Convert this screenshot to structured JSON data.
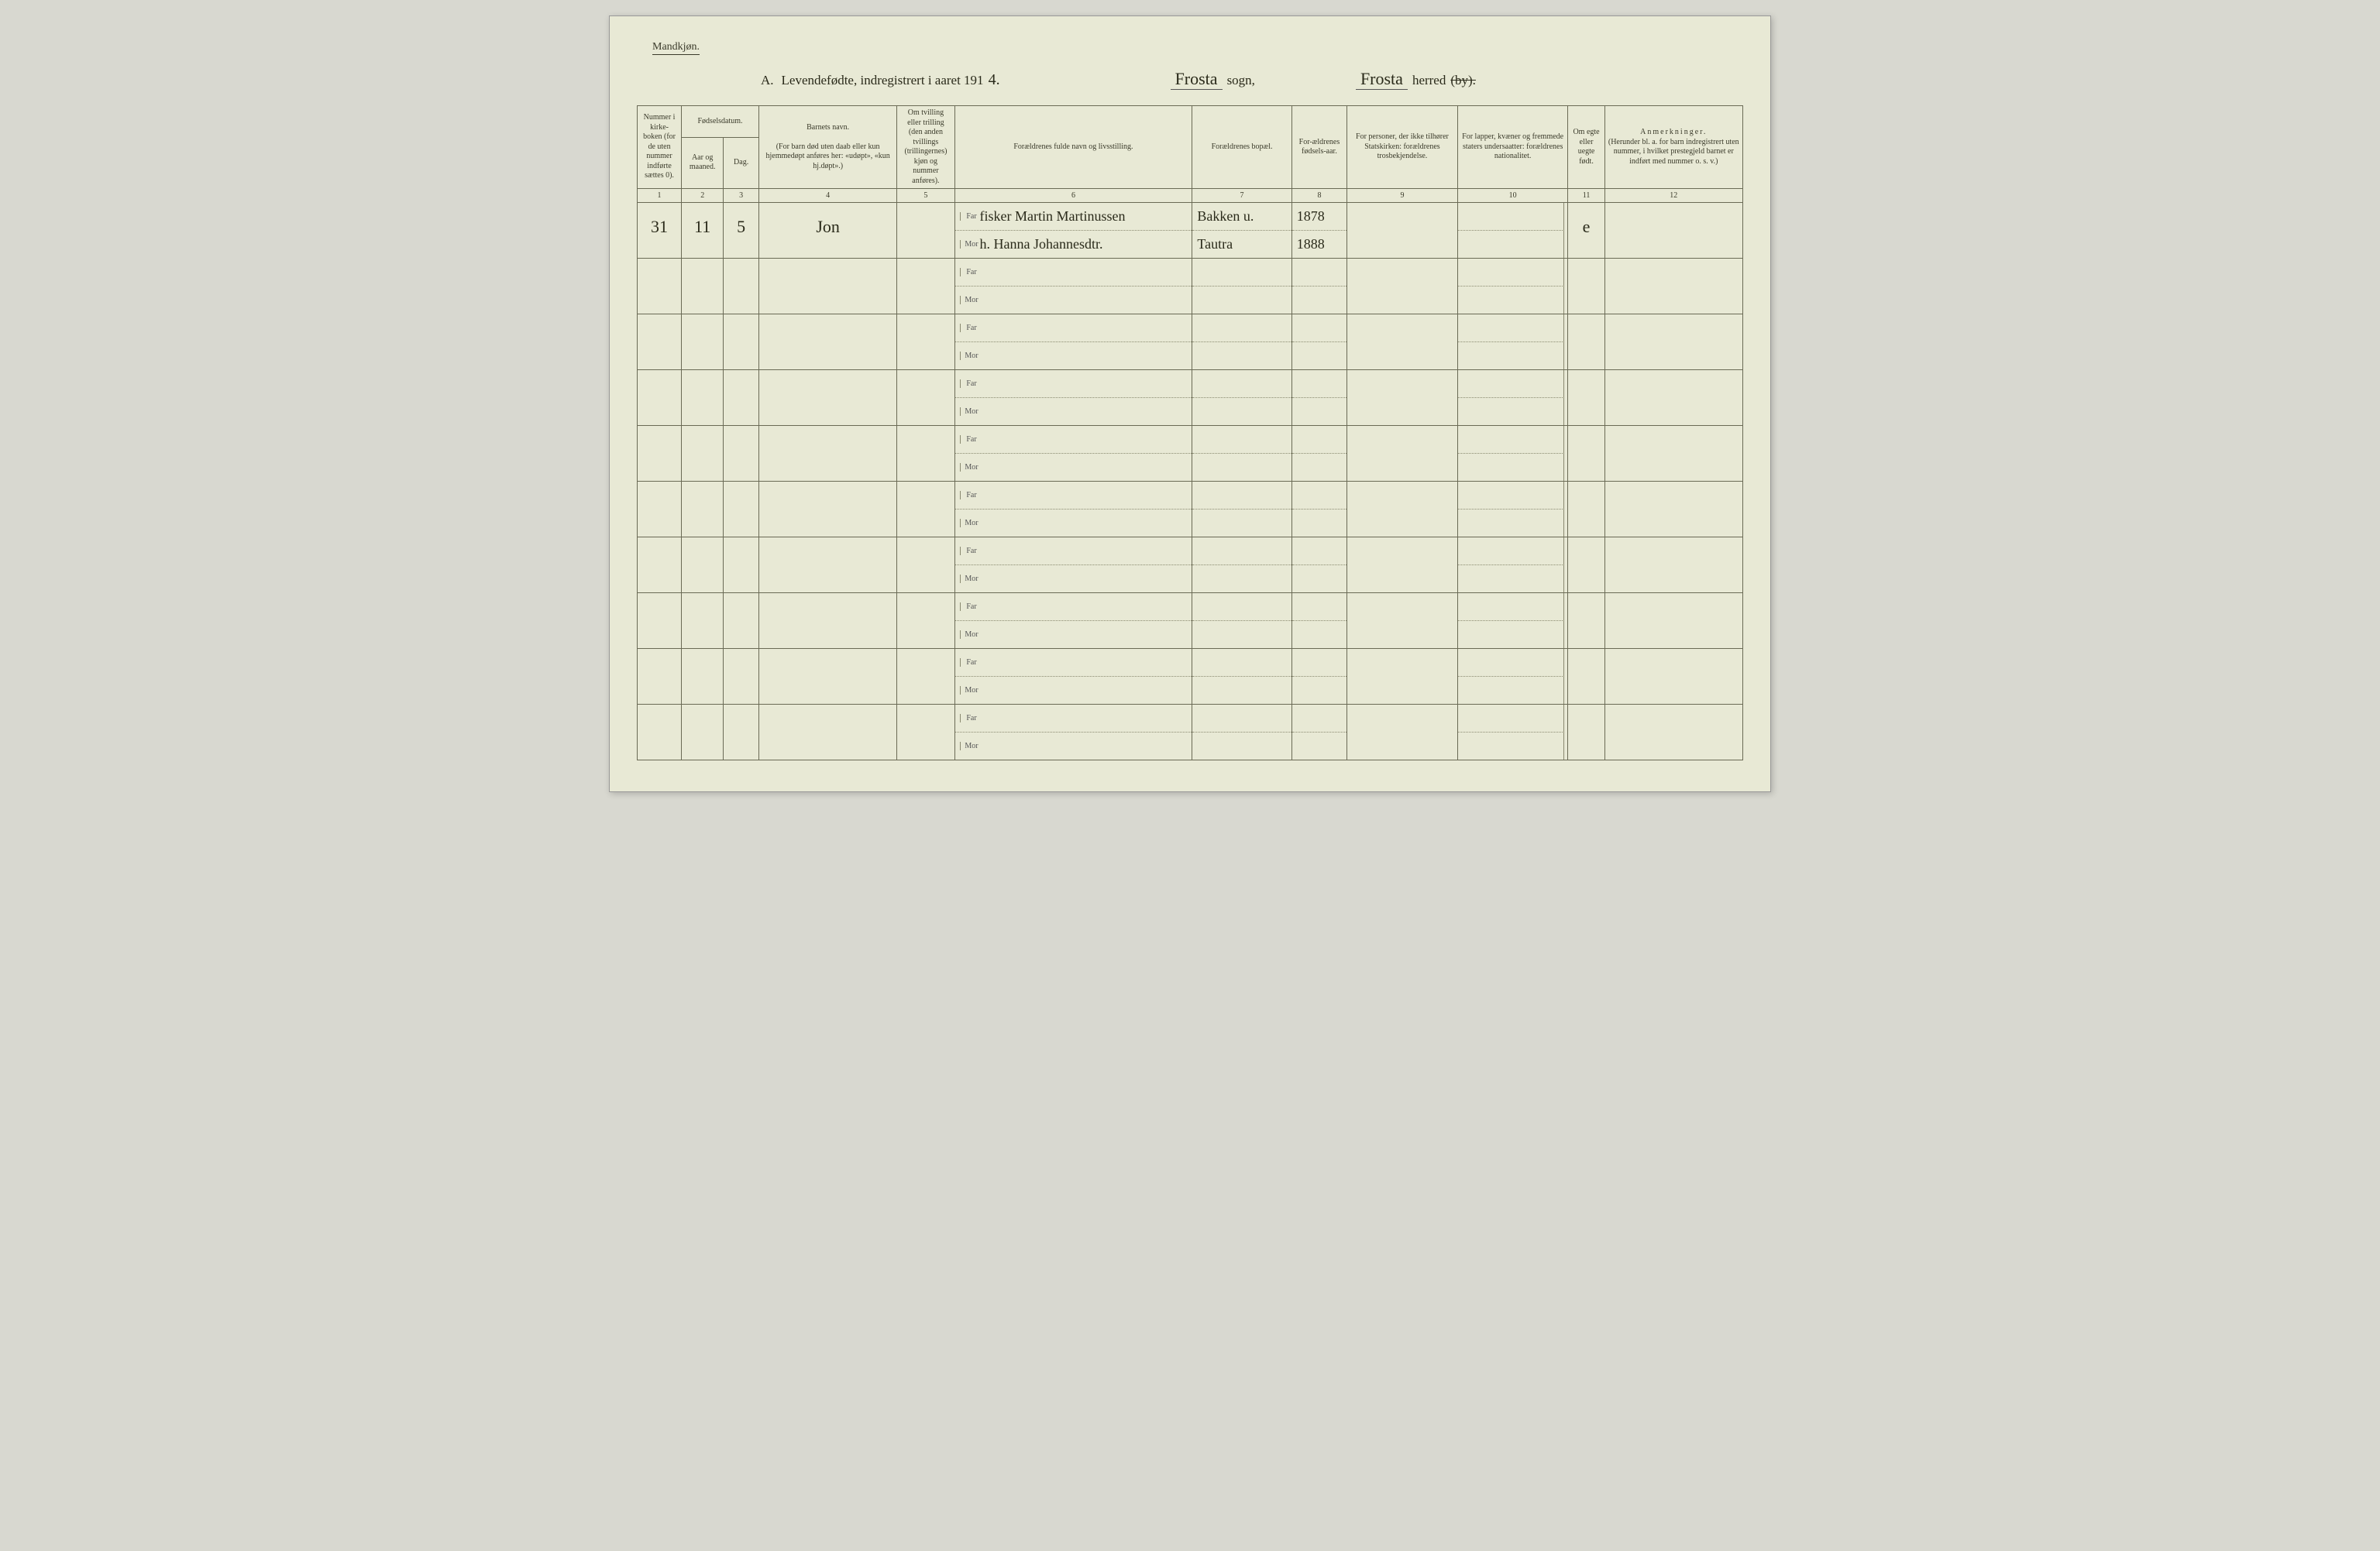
{
  "page": {
    "background_color": "#e8e9d5",
    "border_color": "#6a6a55",
    "text_color": "#3a3a2a"
  },
  "header": {
    "gender_label": "Mandkjøn.",
    "section_letter": "A.",
    "section_title": "Levendefødte, indregistrert i aaret 191",
    "year_suffix_hand": "4.",
    "sogn_hand": "Frosta",
    "sogn_label": "sogn,",
    "herred_hand": "Frosta",
    "herred_label": "herred",
    "by_strike": "(by)."
  },
  "columns": {
    "c1": "Nummer i kirke-boken (for de uten nummer indførte sættes 0).",
    "c2_group": "Fødselsdatum.",
    "c2": "Aar og maaned.",
    "c3": "Dag.",
    "c4": "Barnets navn.",
    "c4_sub": "(For barn død uten daab eller kun hjemmedøpt anføres her: «udøpt», «kun hj.døpt».)",
    "c5": "Om tvilling eller trilling (den anden tvillings (trillingernes) kjøn og nummer anføres).",
    "c6": "Forældrenes fulde navn og livsstilling.",
    "c7": "Forældrenes bopæl.",
    "c8": "For-ældrenes fødsels-aar.",
    "c9": "For personer, der ikke tilhører Statskirken: forældrenes trosbekjendelse.",
    "c10": "For lapper, kvæner og fremmede staters undersaatter: forældrenes nationalitet.",
    "c11": "Om egte eller uegte født.",
    "c12": "Anmerkninger.",
    "c12_sub": "(Herunder bl. a. for barn indregistrert uten nummer, i hvilket prestegjeld barnet er indført med nummer o. s. v.)",
    "far_label": "Far",
    "mor_label": "Mor",
    "numbers": [
      "1",
      "2",
      "3",
      "4",
      "5",
      "6",
      "7",
      "8",
      "9",
      "10",
      "11",
      "12"
    ]
  },
  "col_widths_pct": [
    4.0,
    3.8,
    3.2,
    12.5,
    5.2,
    21.5,
    9.0,
    5.0,
    10.0,
    10.0,
    3.3,
    12.5
  ],
  "rows": [
    {
      "num": "31",
      "month": "11",
      "day": "5",
      "child_name": "Jon",
      "twin": "",
      "far_name": "fisker Martin Martinussen",
      "mor_name": "h. Hanna Johannesdtr.",
      "far_residence": "Bakken u.",
      "mor_residence": "Tautra",
      "far_year": "1878",
      "mor_year": "1888",
      "c9": "",
      "c10": "",
      "legit": "e",
      "remarks": ""
    },
    {},
    {},
    {},
    {},
    {},
    {},
    {},
    {},
    {}
  ]
}
